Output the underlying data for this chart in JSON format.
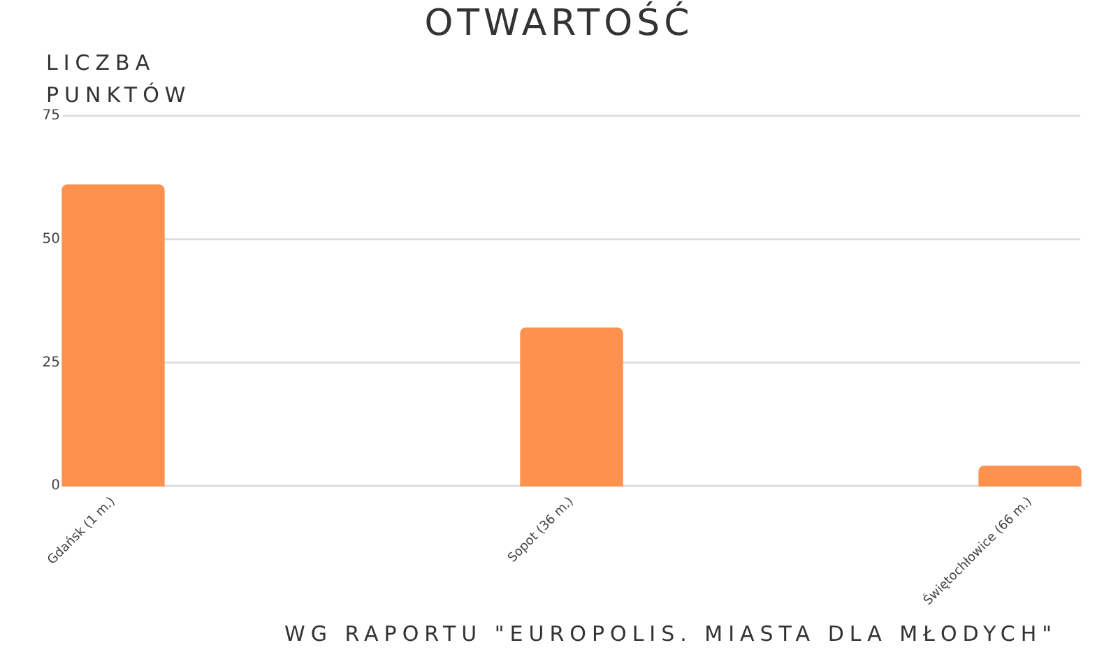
{
  "chart_data": {
    "type": "bar",
    "title": "OTWARTOŚĆ",
    "ylabel": "LICZBA PUNKTÓW",
    "categories": [
      "Gdańsk (1 m.)",
      "Sopot (36 m.)",
      "Świętochłowice (66 m.)"
    ],
    "values": [
      61,
      32,
      4
    ],
    "color": "#fd914d",
    "ylim": [
      0,
      75
    ],
    "yticks": [
      0,
      25,
      50,
      75
    ],
    "grid": "y",
    "annotations": [
      "WG RAPORTU \"EUROPOLIS. MIASTA DLA MŁODYCH\""
    ]
  }
}
